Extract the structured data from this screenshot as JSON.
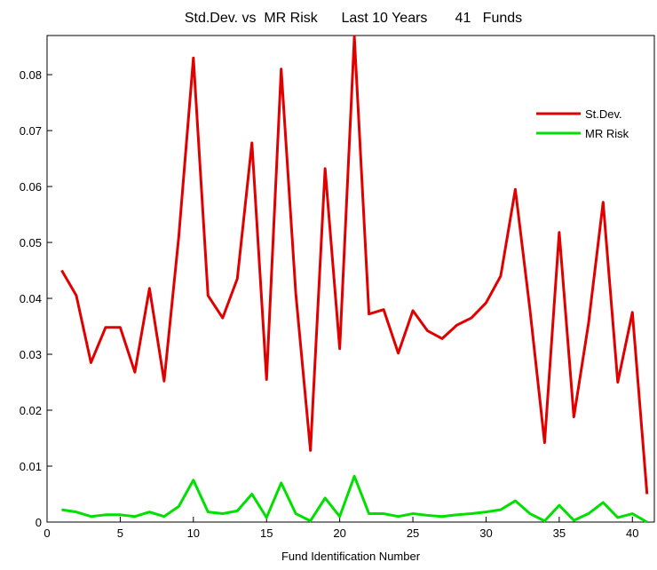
{
  "chart_data": {
    "type": "line",
    "title": "Std.Dev. vs  MR Risk      Last 10 Years       41   Funds",
    "xlabel": "Fund Identification Number",
    "ylabel": "",
    "xlim": [
      0,
      41.5
    ],
    "ylim": [
      0,
      0.087
    ],
    "xticks": [
      0,
      5,
      10,
      15,
      20,
      25,
      30,
      35,
      40
    ],
    "xtick_labels": [
      "0",
      "5",
      "10",
      "15",
      "20",
      "25",
      "30",
      "35",
      "40"
    ],
    "yticks": [
      0,
      0.01,
      0.02,
      0.03,
      0.04,
      0.05,
      0.06,
      0.07,
      0.08
    ],
    "ytick_labels": [
      "0",
      "0.01",
      "0.02",
      "0.03",
      "0.04",
      "0.05",
      "0.06",
      "0.07",
      "0.08"
    ],
    "grid": false,
    "legend_position": "top-right",
    "x": [
      1,
      2,
      3,
      4,
      5,
      6,
      7,
      8,
      9,
      10,
      11,
      12,
      13,
      14,
      15,
      16,
      17,
      18,
      19,
      20,
      21,
      22,
      23,
      24,
      25,
      26,
      27,
      28,
      29,
      30,
      31,
      32,
      33,
      34,
      35,
      36,
      37,
      38,
      39,
      40,
      41
    ],
    "series": [
      {
        "name": "St.Dev.",
        "color": "#e00000",
        "values": [
          0.045,
          0.0405,
          0.0285,
          0.0348,
          0.0348,
          0.0268,
          0.0418,
          0.0252,
          0.051,
          0.083,
          0.0405,
          0.0365,
          0.0435,
          0.0678,
          0.0255,
          0.081,
          0.0408,
          0.0128,
          0.0632,
          0.031,
          0.0868,
          0.0372,
          0.038,
          0.0302,
          0.0378,
          0.0342,
          0.0328,
          0.0352,
          0.0365,
          0.0392,
          0.044,
          0.0595,
          0.038,
          0.0142,
          0.0518,
          0.0188,
          0.0355,
          0.0572,
          0.025,
          0.0375,
          0.005
        ]
      },
      {
        "name": "MR Risk",
        "color": "#00e000",
        "values": [
          0.0022,
          0.0018,
          0.001,
          0.0013,
          0.0013,
          0.001,
          0.0018,
          0.001,
          0.0028,
          0.0075,
          0.0018,
          0.0015,
          0.002,
          0.005,
          0.0008,
          0.007,
          0.0015,
          0.0002,
          0.0043,
          0.001,
          0.0082,
          0.0015,
          0.0015,
          0.001,
          0.0015,
          0.0012,
          0.001,
          0.0013,
          0.0015,
          0.0018,
          0.0022,
          0.0038,
          0.0015,
          0.0002,
          0.003,
          0.0003,
          0.0015,
          0.0035,
          0.0008,
          0.0015,
          0.0
        ]
      }
    ]
  }
}
